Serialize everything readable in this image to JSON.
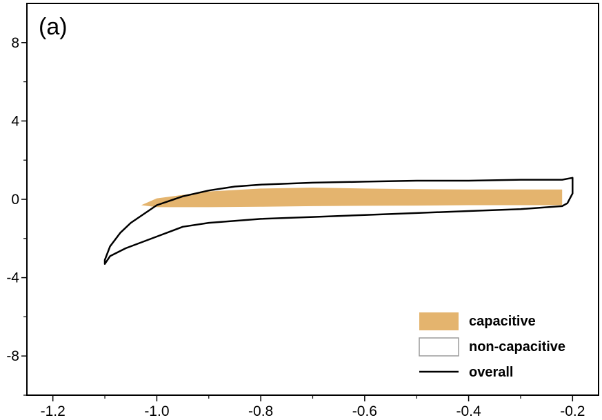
{
  "chart_data": {
    "type": "area",
    "panel_label": "(a)",
    "title": "",
    "xlabel": "",
    "ylabel": "",
    "xlim": [
      -1.25,
      -0.15
    ],
    "ylim": [
      -10,
      10
    ],
    "x_ticks": [
      -1.2,
      -1.0,
      -0.8,
      -0.6,
      -0.4,
      -0.2
    ],
    "x_tick_labels": [
      "-1.2",
      "-1.0",
      "-0.8",
      "-0.6",
      "-0.4",
      "-0.2"
    ],
    "y_ticks": [
      -8,
      -4,
      0,
      4,
      8
    ],
    "y_tick_labels": [
      "-8",
      "-4",
      "0",
      "4",
      "8"
    ],
    "legend_position": "bottom-right",
    "colors": {
      "capacitive": "#E4B46E",
      "non_capacitive": "#ffffff",
      "overall": "#000000"
    },
    "series": [
      {
        "name": "capacitive",
        "style": "filled",
        "upper": {
          "x": [
            -1.03,
            -1.0,
            -0.9,
            -0.8,
            -0.7,
            -0.6,
            -0.5,
            -0.4,
            -0.3,
            -0.22
          ],
          "y": [
            -0.3,
            0.05,
            0.4,
            0.55,
            0.6,
            0.55,
            0.52,
            0.5,
            0.5,
            0.5
          ]
        },
        "lower": {
          "x": [
            -1.03,
            -1.0,
            -0.9,
            -0.8,
            -0.7,
            -0.6,
            -0.5,
            -0.4,
            -0.3,
            -0.22
          ],
          "y": [
            -0.3,
            -0.4,
            -0.4,
            -0.38,
            -0.35,
            -0.33,
            -0.32,
            -0.3,
            -0.3,
            -0.3
          ]
        }
      },
      {
        "name": "non-capacitive",
        "style": "outline"
      },
      {
        "name": "overall",
        "style": "line",
        "x": [
          -0.2,
          -0.2,
          -0.21,
          -0.22,
          -0.3,
          -0.4,
          -0.5,
          -0.6,
          -0.7,
          -0.8,
          -0.9,
          -0.95,
          -1.0,
          -1.03,
          -1.06,
          -1.09,
          -1.1,
          -1.1,
          -1.09,
          -1.07,
          -1.05,
          -1.0,
          -0.95,
          -0.9,
          -0.85,
          -0.8,
          -0.7,
          -0.6,
          -0.5,
          -0.4,
          -0.3,
          -0.22,
          -0.2
        ],
        "y": [
          1.1,
          0.3,
          -0.2,
          -0.35,
          -0.5,
          -0.6,
          -0.7,
          -0.8,
          -0.9,
          -1.0,
          -1.2,
          -1.4,
          -1.9,
          -2.2,
          -2.5,
          -2.9,
          -3.3,
          -3.1,
          -2.4,
          -1.7,
          -1.2,
          -0.3,
          0.15,
          0.45,
          0.65,
          0.75,
          0.85,
          0.9,
          0.95,
          0.95,
          1.0,
          1.0,
          1.1
        ]
      }
    ]
  }
}
